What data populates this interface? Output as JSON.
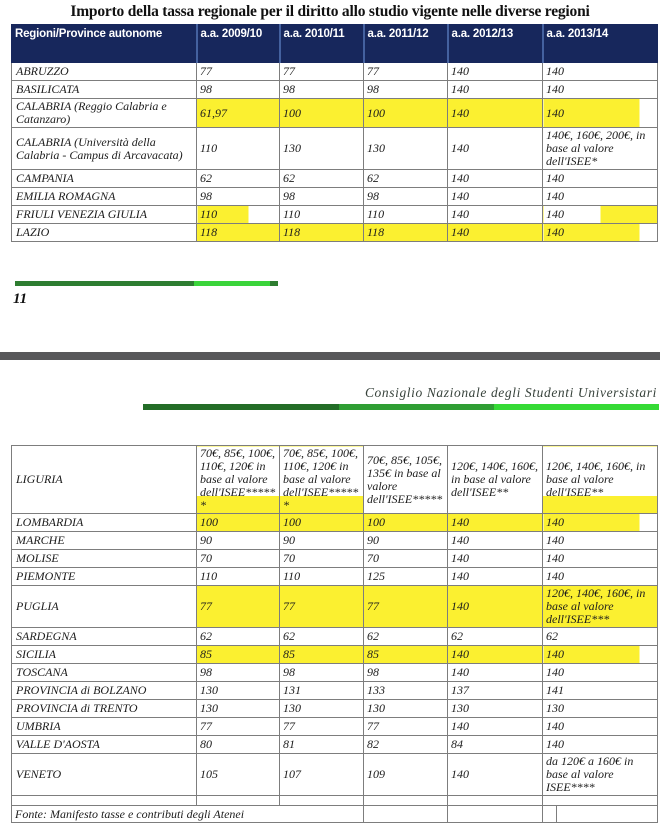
{
  "page1": {
    "title": "Importo della tassa regionale per il diritto allo studio vigente nelle diverse regioni",
    "table": {
      "headers": [
        "Regioni/Province autonome",
        "a.a. 2009/10",
        "a.a. 2010/11",
        "a.a. 2011/12",
        "a.a. 2012/13",
        "a.a. 2013/14"
      ],
      "rows": [
        {
          "region": "ABRUZZO",
          "values": [
            "77",
            "77",
            "77",
            "140",
            "140"
          ],
          "hl": [
            "",
            "",
            "",
            "",
            ""
          ]
        },
        {
          "region": "BASILICATA",
          "values": [
            "98",
            "98",
            "98",
            "140",
            "140"
          ],
          "hl": [
            "",
            "",
            "",
            "",
            ""
          ]
        },
        {
          "region": "CALABRIA (Reggio Calabria e Catanzaro)",
          "values": [
            "61,97",
            "100",
            "100",
            "140",
            "140"
          ],
          "hl": [
            "full",
            "full",
            "full",
            "full",
            "most"
          ]
        },
        {
          "region": "CALABRIA (Università della Calabria - Campus di Arcavacata)",
          "values": [
            "110",
            "130",
            "130",
            "140",
            "140€, 160€, 200€, in base al valore dell'ISEE*"
          ],
          "hl": [
            "",
            "",
            "",
            "",
            ""
          ]
        },
        {
          "region": "CAMPANIA",
          "values": [
            "62",
            "62",
            "62",
            "140",
            "140"
          ],
          "hl": [
            "",
            "",
            "",
            "",
            ""
          ]
        },
        {
          "region": "EMILIA ROMAGNA",
          "values": [
            "98",
            "98",
            "98",
            "140",
            "140"
          ],
          "hl": [
            "",
            "",
            "",
            "",
            ""
          ]
        },
        {
          "region": "FRIULI VENEZIA GIULIA",
          "values": [
            "110",
            "110",
            "110",
            "140",
            "140"
          ],
          "hl": [
            "left",
            "",
            "",
            "",
            "right"
          ]
        },
        {
          "region": "LAZIO",
          "values": [
            "118",
            "118",
            "118",
            "140",
            "140"
          ],
          "hl": [
            "full",
            "full",
            "full",
            "full",
            "most"
          ]
        }
      ]
    },
    "page_number": "11"
  },
  "page2": {
    "org_name": "Consiglio Nazionale degli Studenti Universistari",
    "table": {
      "rows": [
        {
          "region": "LIGURIA",
          "values": [
            "70€, 85€, 100€, 110€, 120€ in base al valore dell'ISEE******",
            "70€, 85€, 100€, 110€, 120€ in base al valore dell'ISEE******",
            "70€, 85€, 105€, 135€ in base al valore dell'ISEE*****",
            "120€, 140€, 160€, in base al valore dell'ISEE**",
            "120€, 140€, 160€, in base al valore dell'ISEE**"
          ],
          "hl": [
            "bottom",
            "bottom",
            "",
            "",
            "bottom"
          ]
        },
        {
          "region": "LOMBARDIA",
          "values": [
            "100",
            "100",
            "100",
            "140",
            "140"
          ],
          "hl": [
            "full",
            "full",
            "full",
            "full",
            "most"
          ]
        },
        {
          "region": "MARCHE",
          "values": [
            "90",
            "90",
            "90",
            "140",
            "140"
          ],
          "hl": [
            "",
            "",
            "",
            "",
            ""
          ]
        },
        {
          "region": "MOLISE",
          "values": [
            "70",
            "70",
            "70",
            "140",
            "140"
          ],
          "hl": [
            "",
            "",
            "",
            "",
            ""
          ]
        },
        {
          "region": "PIEMONTE",
          "values": [
            "110",
            "110",
            "125",
            "140",
            "140"
          ],
          "hl": [
            "",
            "",
            "",
            "",
            ""
          ]
        },
        {
          "region": "PUGLIA",
          "values": [
            "77",
            "77",
            "77",
            "140",
            "120€, 140€, 160€, in base al valore dell'ISEE***"
          ],
          "hl": [
            "full",
            "full",
            "full",
            "full",
            "full"
          ]
        },
        {
          "region": "SARDEGNA",
          "values": [
            "62",
            "62",
            "62",
            "62",
            "62"
          ],
          "hl": [
            "",
            "",
            "",
            "",
            ""
          ]
        },
        {
          "region": "SICILIA",
          "values": [
            "85",
            "85",
            "85",
            "140",
            "140"
          ],
          "hl": [
            "full",
            "full",
            "full",
            "full",
            "most"
          ]
        },
        {
          "region": "TOSCANA",
          "values": [
            "98",
            "98",
            "98",
            "140",
            "140"
          ],
          "hl": [
            "",
            "",
            "",
            "",
            ""
          ]
        },
        {
          "region": "PROVINCIA di BOLZANO",
          "values": [
            "130",
            "131",
            "133",
            "137",
            "141"
          ],
          "hl": [
            "",
            "",
            "",
            "",
            ""
          ]
        },
        {
          "region": "PROVINCIA di TRENTO",
          "values": [
            "130",
            "130",
            "130",
            "130",
            "130"
          ],
          "hl": [
            "",
            "",
            "",
            "",
            ""
          ]
        },
        {
          "region": "UMBRIA",
          "values": [
            "77",
            "77",
            "77",
            "140",
            "140"
          ],
          "hl": [
            "",
            "",
            "",
            "",
            ""
          ]
        },
        {
          "region": "VALLE D'AOSTA",
          "values": [
            "80",
            "81",
            "82",
            "84",
            "140"
          ],
          "hl": [
            "",
            "",
            "",
            "",
            ""
          ]
        },
        {
          "region": "VENETO",
          "values": [
            "105",
            "107",
            "109",
            "140",
            "da 120€ a 160€ in base al valore ISEE****"
          ],
          "hl": [
            "",
            "",
            "",
            "",
            ""
          ]
        }
      ]
    },
    "footer": "Fonte: Manifesto tasse e contributi degli Atenei"
  },
  "colors": {
    "header_bg": "#17275c",
    "marker_highlight": "#fbf030",
    "green_bar_dark": "#2e7d31",
    "green_bar_bright": "#35da35",
    "page_divider": "#58585a"
  }
}
